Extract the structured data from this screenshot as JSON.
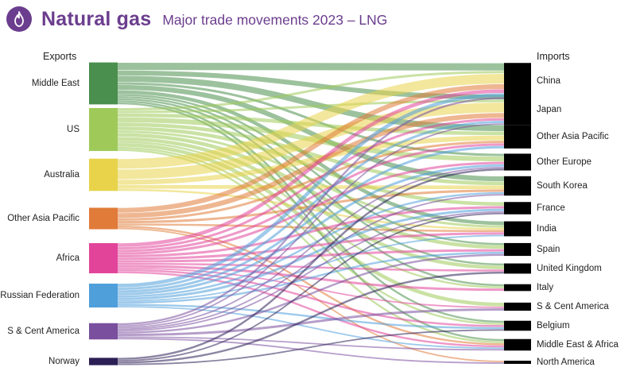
{
  "header": {
    "title": "Natural gas",
    "subtitle": "Major trade movements 2023 – LNG",
    "icon": "flame-icon",
    "brand_color": "#6b3d8e"
  },
  "columns": {
    "exports": "Exports",
    "imports": "Imports"
  },
  "exporters": [
    {
      "name": "Middle East",
      "color": "#4a8f4d"
    },
    {
      "name": "US",
      "color": "#9fca5a"
    },
    {
      "name": "Australia",
      "color": "#e8d34a"
    },
    {
      "name": "Other Asia Pacific",
      "color": "#e07b39"
    },
    {
      "name": "Africa",
      "color": "#e2449a"
    },
    {
      "name": "Russian Federation",
      "color": "#4f9fda"
    },
    {
      "name": "S & Cent America",
      "color": "#7a4f9e"
    },
    {
      "name": "Norway",
      "color": "#2b1f55"
    }
  ],
  "importers": [
    {
      "name": "China"
    },
    {
      "name": "Japan"
    },
    {
      "name": "Other Asia Pacific"
    },
    {
      "name": "Other Europe"
    },
    {
      "name": "South Korea"
    },
    {
      "name": "France"
    },
    {
      "name": "India"
    },
    {
      "name": "Spain"
    },
    {
      "name": "United Kingdom"
    },
    {
      "name": "Italy"
    },
    {
      "name": "S & Cent America"
    },
    {
      "name": "Belgium"
    },
    {
      "name": "Middle East & Africa"
    },
    {
      "name": "North America"
    }
  ],
  "flows": [
    [
      0,
      0,
      3
    ],
    [
      0,
      1,
      2
    ],
    [
      0,
      2,
      2.5
    ],
    [
      0,
      4,
      2
    ],
    [
      0,
      6,
      1.5
    ],
    [
      0,
      3,
      1
    ],
    [
      0,
      7,
      0.8
    ],
    [
      0,
      8,
      0.8
    ],
    [
      0,
      9,
      0.8
    ],
    [
      0,
      11,
      0.8
    ],
    [
      0,
      12,
      0.8
    ],
    [
      1,
      0,
      1
    ],
    [
      1,
      1,
      1
    ],
    [
      1,
      2,
      1.5
    ],
    [
      1,
      3,
      2
    ],
    [
      1,
      4,
      1.5
    ],
    [
      1,
      5,
      1.5
    ],
    [
      1,
      6,
      1
    ],
    [
      1,
      7,
      1.5
    ],
    [
      1,
      8,
      1.5
    ],
    [
      1,
      9,
      0.8
    ],
    [
      1,
      10,
      1.5
    ],
    [
      1,
      11,
      0.8
    ],
    [
      1,
      12,
      0.8
    ],
    [
      2,
      0,
      4
    ],
    [
      2,
      1,
      4
    ],
    [
      2,
      2,
      2
    ],
    [
      2,
      4,
      1.5
    ],
    [
      2,
      6,
      0.8
    ],
    [
      3,
      0,
      2
    ],
    [
      3,
      1,
      2
    ],
    [
      3,
      2,
      1
    ],
    [
      3,
      4,
      1
    ],
    [
      3,
      6,
      0.8
    ],
    [
      3,
      12,
      0.8
    ],
    [
      3,
      13,
      0.6
    ],
    [
      4,
      0,
      1.5
    ],
    [
      4,
      1,
      1
    ],
    [
      4,
      2,
      1
    ],
    [
      4,
      3,
      1
    ],
    [
      4,
      5,
      1
    ],
    [
      4,
      6,
      1
    ],
    [
      4,
      7,
      1
    ],
    [
      4,
      8,
      0.8
    ],
    [
      4,
      9,
      1
    ],
    [
      4,
      10,
      0.6
    ],
    [
      4,
      11,
      0.8
    ],
    [
      4,
      12,
      0.8
    ],
    [
      5,
      0,
      1.5
    ],
    [
      5,
      1,
      1
    ],
    [
      5,
      2,
      1
    ],
    [
      5,
      3,
      1
    ],
    [
      5,
      4,
      0.8
    ],
    [
      5,
      5,
      1
    ],
    [
      5,
      6,
      0.6
    ],
    [
      5,
      7,
      0.8
    ],
    [
      5,
      11,
      0.8
    ],
    [
      5,
      12,
      0.6
    ],
    [
      6,
      0,
      0.8
    ],
    [
      6,
      1,
      0.6
    ],
    [
      6,
      3,
      0.6
    ],
    [
      6,
      4,
      0.6
    ],
    [
      6,
      5,
      0.6
    ],
    [
      6,
      7,
      0.8
    ],
    [
      6,
      10,
      1
    ],
    [
      6,
      12,
      0.6
    ],
    [
      6,
      13,
      0.6
    ],
    [
      7,
      3,
      0.8
    ],
    [
      7,
      5,
      0.6
    ],
    [
      7,
      8,
      0.8
    ],
    [
      7,
      11,
      0.6
    ]
  ]
}
